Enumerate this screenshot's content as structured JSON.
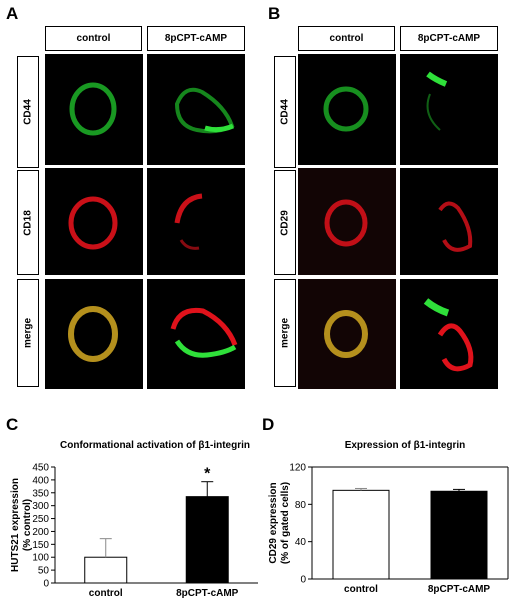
{
  "panels": {
    "A": {
      "letter": "A",
      "columns": [
        "control",
        "8pCPT-cAMP"
      ],
      "rows": [
        "CD44",
        "CD18",
        "merge"
      ]
    },
    "B": {
      "letter": "B",
      "columns": [
        "control",
        "8pCPT-cAMP"
      ],
      "rows": [
        "CD44",
        "CD29",
        "merge"
      ]
    },
    "C": {
      "letter": "C"
    },
    "D": {
      "letter": "D"
    }
  },
  "colors": {
    "green": "#1fbf2a",
    "red": "#e0121b",
    "merge_ctrl": "#c8a020"
  },
  "chart_data": [
    {
      "type": "bar",
      "title": "Conformational activation of β1-integrin",
      "ylabel": "HUTS21 expression\n(% control)",
      "ylabel_lines": [
        "HUTS21 expression",
        "(% control)"
      ],
      "categories": [
        "control",
        "8pCPT-cAMP"
      ],
      "values": [
        100,
        335
      ],
      "errors": [
        72,
        58
      ],
      "bar_colors": [
        "#ffffff",
        "#000000"
      ],
      "ylim": [
        0,
        450
      ],
      "yticks": [
        0,
        50,
        100,
        150,
        200,
        250,
        300,
        350,
        400,
        450
      ],
      "annotation": "*",
      "grid": false
    },
    {
      "type": "bar",
      "title": "Expression of β1-integrin",
      "ylabel": "CD29 expression\n(% of gated cells)",
      "ylabel_lines": [
        "CD29 expression",
        "(% of gated cells)"
      ],
      "categories": [
        "control",
        "8pCPT-cAMP"
      ],
      "values": [
        95,
        94
      ],
      "errors": [
        2,
        2
      ],
      "bar_colors": [
        "#ffffff",
        "#000000"
      ],
      "ylim": [
        0,
        120
      ],
      "yticks": [
        0,
        40,
        80,
        120
      ],
      "grid": false
    }
  ]
}
